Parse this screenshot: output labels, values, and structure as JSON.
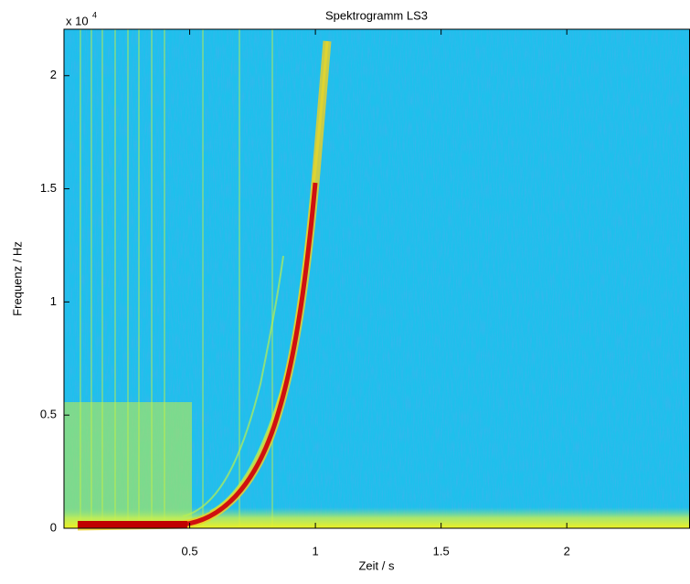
{
  "chart_data": {
    "type": "spectrogram",
    "title": "Spektrogramm LS3",
    "x_label": "Zeit / s",
    "y_label": "Frequenz / Hz",
    "y_exponent_label": "x 10",
    "y_exponent": 4,
    "xlim": [
      0,
      2.49
    ],
    "ylim": [
      0,
      2.205
    ],
    "xticks": [
      0.5,
      1,
      1.5,
      2
    ],
    "yticks": [
      0,
      0.5,
      1,
      1.5,
      2
    ]
  }
}
